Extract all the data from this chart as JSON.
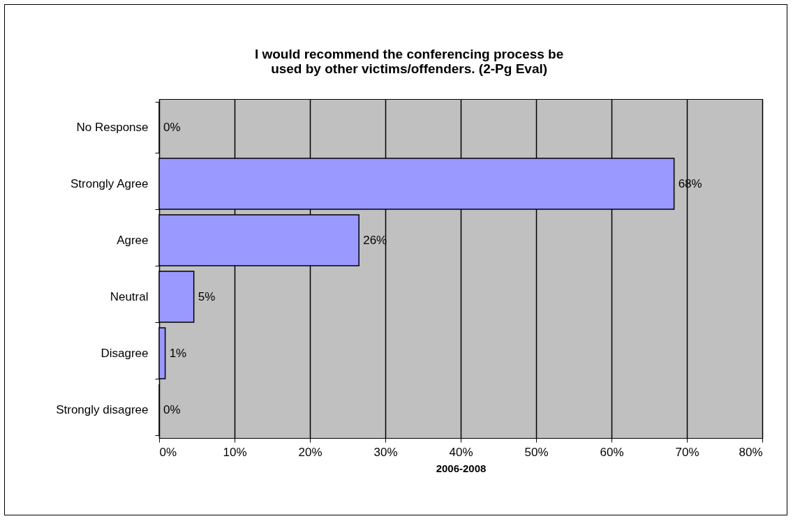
{
  "chart_data": {
    "type": "bar",
    "orientation": "horizontal",
    "title": "I would recommend the conferencing process be used by other victims/offenders. (2-Pg Eval)",
    "xlabel": "2006-2008",
    "categories": [
      "No Response",
      "Strongly  Agree",
      "Agree",
      "Neutral",
      "Disagree",
      "Strongly disagree"
    ],
    "values": [
      0,
      68.3,
      26.5,
      4.6,
      0.8,
      0
    ],
    "value_labels": [
      "0%",
      "68%",
      "26%",
      "5%",
      "1%",
      "0%"
    ],
    "color": "#9999ff",
    "xlim": [
      0,
      80
    ],
    "xticks": [
      {
        "value": 0,
        "label": "0%"
      },
      {
        "value": 10,
        "label": "10%"
      },
      {
        "value": 20,
        "label": "20%"
      },
      {
        "value": 30,
        "label": "30%"
      },
      {
        "value": 40,
        "label": "40%"
      },
      {
        "value": 50,
        "label": "50%"
      },
      {
        "value": 60,
        "label": "60%"
      },
      {
        "value": 70,
        "label": "70%"
      },
      {
        "value": 80,
        "label": "80%"
      }
    ],
    "grid": "x"
  }
}
